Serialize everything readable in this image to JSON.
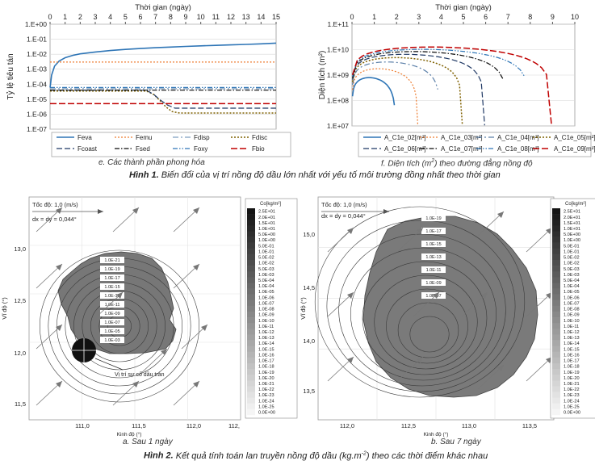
{
  "chart_data": [
    {
      "id": "e",
      "type": "line",
      "title": "Thời gian (ngày)",
      "xlabel": "Thời gian (ngày)",
      "ylabel": "Tỷ lệ tiêu tán",
      "xlim": [
        0,
        15
      ],
      "ylim_log10": [
        -7,
        0
      ],
      "yscale": "log",
      "x_ticks": [
        "0",
        "1",
        "2",
        "3",
        "4",
        "5",
        "6",
        "7",
        "8",
        "9",
        "10",
        "11",
        "12",
        "13",
        "14",
        "15"
      ],
      "y_ticks": [
        "1.E+00",
        "1.E-01",
        "1.E-02",
        "1.E-03",
        "1.E-04",
        "1.E-05",
        "1.E-06",
        "1.E-07"
      ],
      "series": [
        {
          "name": "Feva",
          "color": "#2e75b6",
          "dash": "",
          "width": 1.6,
          "points": [
            [
              0,
              6e-05
            ],
            [
              0.03,
              0.0001
            ],
            [
              0.1,
              0.0004
            ],
            [
              0.3,
              0.0016
            ],
            [
              0.6,
              0.0035
            ],
            [
              1,
              0.0058
            ],
            [
              1.5,
              0.0083
            ],
            [
              2,
              0.0105
            ],
            [
              3,
              0.014
            ],
            [
              4,
              0.0175
            ],
            [
              5,
              0.021
            ],
            [
              6,
              0.024
            ],
            [
              7,
              0.027
            ],
            [
              8,
              0.03
            ],
            [
              9,
              0.033
            ],
            [
              10,
              0.036
            ],
            [
              11,
              0.039
            ],
            [
              12,
              0.042
            ],
            [
              13,
              0.045
            ],
            [
              14,
              0.049
            ],
            [
              15,
              0.055
            ]
          ]
        },
        {
          "name": "Femu",
          "color": "#ed7d31",
          "dash": "2,2",
          "width": 1.2,
          "points": [
            [
              0,
              0.003
            ],
            [
              15,
              0.003
            ]
          ]
        },
        {
          "name": "Fdisp",
          "color": "#7f9fc0",
          "dash": "7,3,2,3",
          "width": 1.2,
          "points": [
            [
              0,
              5e-05
            ],
            [
              15,
              5e-05
            ]
          ]
        },
        {
          "name": "Fdisc",
          "color": "#7f6000",
          "dash": "2,2",
          "width": 1.5,
          "points": [
            [
              0,
              3.5e-05
            ],
            [
              6.4,
              3.5e-05
            ],
            [
              6.9,
              2e-05
            ],
            [
              7.3,
              8e-06
            ],
            [
              7.7,
              3e-06
            ],
            [
              8.1,
              1.5e-06
            ],
            [
              8.6,
              1.2e-06
            ],
            [
              15,
              1.2e-06
            ]
          ]
        },
        {
          "name": "Fcoast",
          "color": "#1f3864",
          "dash": "7,3",
          "width": 1.2,
          "points": [
            [
              0,
              4e-05
            ],
            [
              6.4,
              4e-05
            ],
            [
              6.9,
              2e-05
            ],
            [
              7.3,
              9e-06
            ],
            [
              7.8,
              4e-06
            ],
            [
              8.3,
              2.5e-06
            ],
            [
              15,
              2.5e-06
            ]
          ]
        },
        {
          "name": "Fsed",
          "color": "#0a0a0a",
          "dash": "6,2,1.5,2",
          "width": 1.2,
          "points": [
            [
              0,
              4e-05
            ],
            [
              15,
              4e-05
            ]
          ]
        },
        {
          "name": "Foxy",
          "color": "#2e75b6",
          "dash": "6,2,1.5,2,1.5,2",
          "width": 1.2,
          "points": [
            [
              0,
              6e-05
            ],
            [
              15,
              6e-05
            ]
          ]
        },
        {
          "name": "Fbio",
          "color": "#c00000",
          "dash": "8,3",
          "width": 1.5,
          "points": [
            [
              0,
              5e-06
            ],
            [
              15,
              5e-06
            ]
          ]
        }
      ],
      "legend": [
        [
          "Feva",
          "Femu",
          "Fdisp",
          "Fdisc"
        ],
        [
          "Fcoast",
          "Fsed",
          "Foxy",
          "Fbio"
        ]
      ]
    },
    {
      "id": "f",
      "type": "line",
      "title": "Thời gian (ngày)",
      "xlabel": "Thời gian (ngày)",
      "ylabel": "Diện tích (m²)",
      "xlim": [
        0,
        10
      ],
      "ylim_log10": [
        7,
        11
      ],
      "yscale": "log",
      "x_ticks": [
        "0",
        "1",
        "2",
        "3",
        "4",
        "5",
        "6",
        "7",
        "8",
        "9",
        "10"
      ],
      "y_ticks": [
        "1.E+11",
        "1.E+10",
        "1.E+09",
        "1.E+08",
        "1.E+07"
      ],
      "series": [
        {
          "name": "A_C1e_02[m²]",
          "color": "#2e75b6",
          "dash": "",
          "width": 1.6,
          "end": 1.95,
          "peak": 850000000
        },
        {
          "name": "A_C1e_03[m²]",
          "color": "#ed7d31",
          "dash": "2,2",
          "width": 1.2,
          "end": 2.95,
          "peak": 1900000000
        },
        {
          "name": "A_C1e_04[m²]",
          "color": "#5b7fa8",
          "dash": "7,3,2,3",
          "width": 1.2,
          "end": 3.95,
          "peak": 3500000000
        },
        {
          "name": "A_C1e_05[m²]",
          "color": "#7f6000",
          "dash": "2,2",
          "width": 1.5,
          "end": 4.95,
          "peak": 5200000000
        },
        {
          "name": "A_C1e_06[m²]",
          "color": "#1f3864",
          "dash": "7,3",
          "width": 1.2,
          "end": 5.95,
          "peak": 7000000000
        },
        {
          "name": "A_C1e_07[m²]",
          "color": "#0a0a0a",
          "dash": "6,2,1.5,2",
          "width": 1.2,
          "end": 6.95,
          "peak": 9000000000
        },
        {
          "name": "A_C1e_08[m²]",
          "color": "#2e75b6",
          "dash": "6,2,1.5,2,1.5,2",
          "width": 1.2,
          "end": 7.95,
          "peak": 11000000000
        },
        {
          "name": "A_C1e_09[m²]",
          "color": "#c00000",
          "dash": "8,3",
          "width": 1.5,
          "end": 8.95,
          "peak": 13500000000
        }
      ],
      "legend": [
        [
          "A_C1e_02[m²]",
          "A_C1e_03[m²]",
          "A_C1e_04[m²]",
          "A_C1e_05[m²]"
        ],
        [
          "A_C1e_06[m²]",
          "A_C1e_07[m²]",
          "A_C1e_08[m²]",
          "A_C1e_09[m²]"
        ]
      ]
    }
  ],
  "captions": {
    "e": "e. Các thành phần phong hóa",
    "f": "f. Diện tích (m²) theo đường đẳng nồng độ",
    "hinh1_label": "Hình 1.",
    "hinh1_text": " Biến đổi của vị trí nồng độ dầu lớn nhất với yếu tố môi trường đồng nhất theo thời gian",
    "a": "a. Sau 1 ngày",
    "b": "b. Sau 7 ngày",
    "hinh2_label": "Hình 2.",
    "hinh2_text": " Kết quả tính toán lan truyền nồng độ dầu (kg.m⁻²) theo các thời điểm khác nhau"
  },
  "maps": {
    "colorbar_title": "Co[kg/m²]",
    "colorbar_labels": [
      "2.5E+01",
      "2.0E+01",
      "1.5E+01",
      "1.0E+01",
      "5.0E+00",
      "1.0E+00",
      "5.0E-01",
      "1.0E-01",
      "5.0E-02",
      "1.0E-02",
      "5.0E-03",
      "1.0E-03",
      "5.0E-04",
      "1.0E-04",
      "1.0E-05",
      "1.0E-06",
      "1.0E-07",
      "1.0E-08",
      "1.0E-09",
      "1.0E-10",
      "1.0E-11",
      "1.0E-12",
      "1.0E-13",
      "1.0E-14",
      "1.0E-15",
      "1.0E-16",
      "1.0E-17",
      "1.0E-18",
      "1.0E-19",
      "1.0E-20",
      "1.0E-21",
      "1.0E-22",
      "1.0E-23",
      "1.0E-24",
      "1.0E-25",
      "0.0E+00"
    ],
    "a": {
      "speed_text": "Tốc độ: 1,0 (m/s)",
      "dx_text": "dx = dy = 0,044°",
      "ylabel": "Vĩ độ (°)",
      "xlabel": "Kinh độ (°)",
      "y_ticks": [
        "13,0",
        "12,5",
        "12,0",
        "11,5"
      ],
      "x_ticks": [
        "111,0",
        "111,5",
        "112,0",
        "112,"
      ],
      "contour_labels": [
        "1.0E-21",
        "1.0E-19",
        "1.0E-17",
        "1.0E-15",
        "1.0E-13",
        "1.0E-11",
        "1.0E-09",
        "1.0E-07",
        "1.0E-05",
        "1.0E-03"
      ],
      "spill_label": "Vị trí sự cố dầu tràn"
    },
    "b": {
      "speed_text": "Tốc độ: 1,0 (m/s)",
      "dx_text": "dx = dy = 0,044°",
      "ylabel": "Vĩ độ (°)",
      "xlabel": "Kinh độ (°)",
      "y_ticks": [
        "15,0",
        "14,5",
        "14,0",
        "13,5"
      ],
      "x_ticks": [
        "112,0",
        "112,5",
        "113,0",
        "113,5"
      ],
      "contour_labels": [
        "1.0E-19",
        "1.0E-17",
        "1.0E-15",
        "1.0E-13",
        "1.0E-11",
        "1.0E-09",
        "1.0E-07"
      ]
    }
  }
}
